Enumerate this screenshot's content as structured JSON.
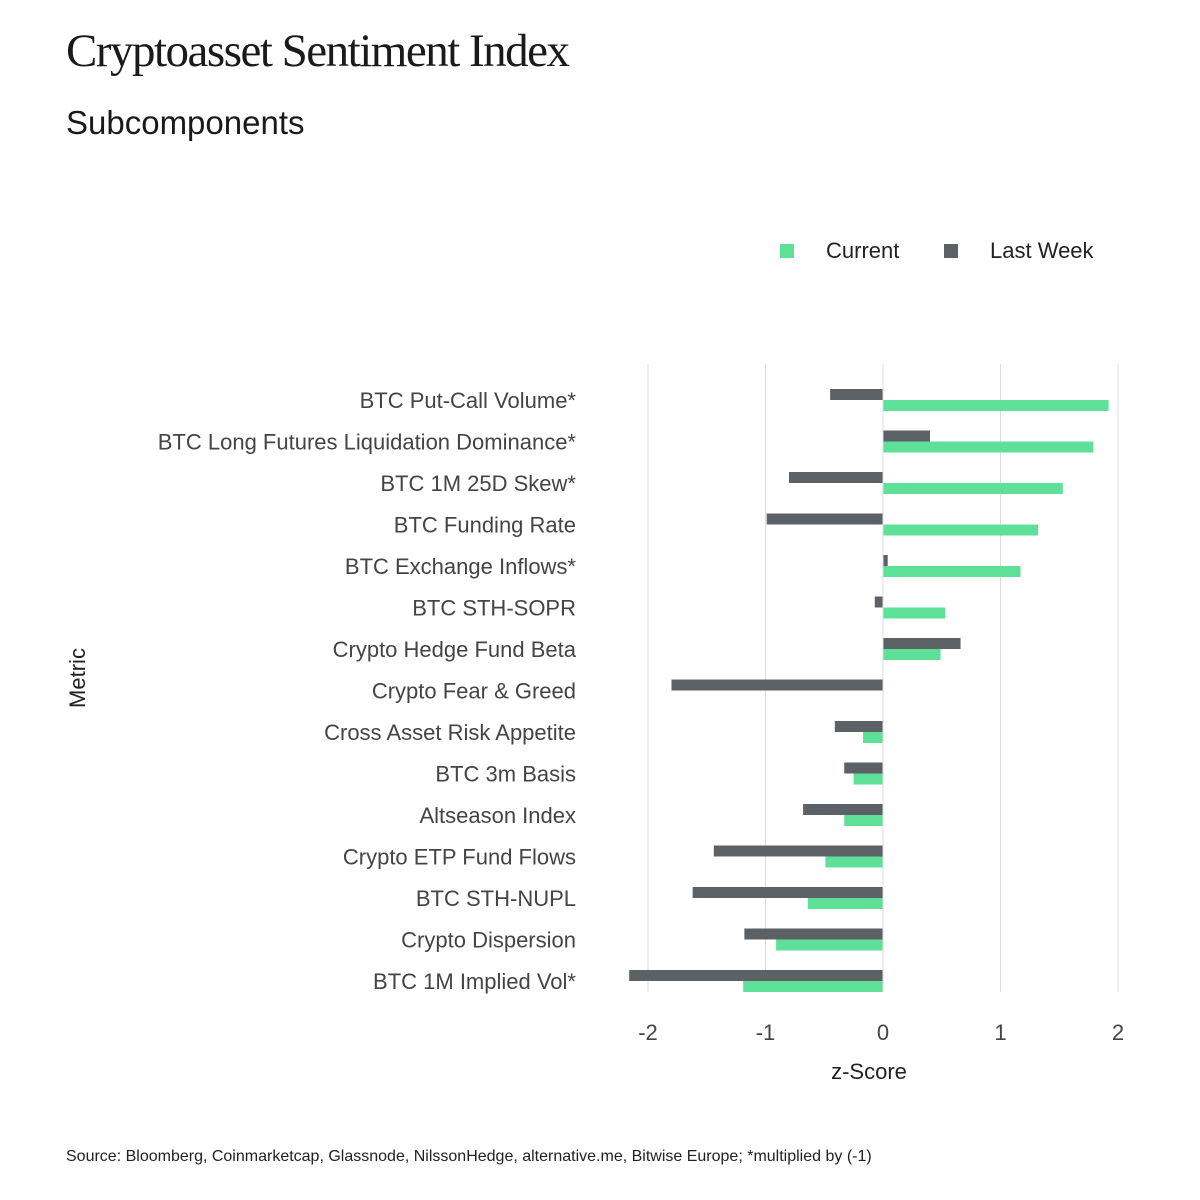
{
  "header": {
    "title": "Cryptoasset Sentiment Index",
    "subtitle": "Subcomponents"
  },
  "footer": {
    "source": "Source: Bloomberg, Coinmarketcap, Glassnode, NilssonHedge, alternative.me, Bitwise Europe; *multiplied by (-1)"
  },
  "chart_data": {
    "type": "bar",
    "orientation": "horizontal",
    "title": "Cryptoasset Sentiment Index",
    "subtitle": "Subcomponents",
    "xlabel": "z-Score",
    "ylabel": "Metric",
    "xlim": [
      -2.2,
      2.1
    ],
    "xticks": [
      -2,
      -1,
      0,
      1,
      2
    ],
    "grid": "vertical",
    "legend_position": "top-right",
    "categories": [
      "BTC Put-Call Volume*",
      "BTC Long Futures Liquidation Dominance*",
      "BTC 1M 25D Skew*",
      "BTC Funding Rate",
      "BTC Exchange Inflows*",
      "BTC STH-SOPR",
      "Crypto Hedge Fund Beta",
      "Crypto Fear & Greed",
      "Cross Asset Risk Appetite",
      "BTC 3m Basis",
      "Altseason Index",
      "Crypto ETP Fund Flows",
      "BTC STH-NUPL",
      "Crypto Dispersion",
      "BTC 1M Implied Vol*"
    ],
    "series": [
      {
        "name": "Current",
        "color": "#5ee098",
        "values": [
          1.92,
          1.79,
          1.53,
          1.32,
          1.17,
          0.53,
          0.49,
          0.0,
          -0.17,
          -0.25,
          -0.33,
          -0.49,
          -0.64,
          -0.91,
          -1.19
        ]
      },
      {
        "name": "Last Week",
        "color": "#5c6166",
        "values": [
          -0.45,
          0.4,
          -0.8,
          -0.99,
          0.04,
          -0.07,
          0.66,
          -1.8,
          -0.41,
          -0.33,
          -0.68,
          -1.44,
          -1.62,
          -1.18,
          -2.16
        ]
      }
    ]
  }
}
